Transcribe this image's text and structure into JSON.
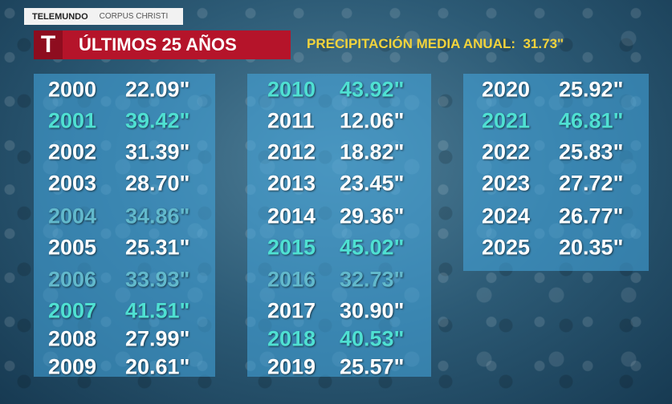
{
  "header": {
    "brand": "TELEMUNDO",
    "location": "CORPUS CHRISTI",
    "logo": "T",
    "title": "ÚLTIMOS 25 AÑOS",
    "subtitle": "PRECIPITACIÓN MEDIA ANUAL:  31.73\""
  },
  "table": {
    "columns": [
      {
        "rows": [
          {
            "year": "2000",
            "value": "22.09\"",
            "color": "#ffffff"
          },
          {
            "year": "2001",
            "value": "39.42\"",
            "color": "#4fe0d2"
          },
          {
            "year": "2002",
            "value": "31.39\"",
            "color": "#ffffff"
          },
          {
            "year": "2003",
            "value": "28.70\"",
            "color": "#ffffff"
          },
          {
            "year": "2004",
            "value": "34.86\"",
            "color": "#62b9cc"
          },
          {
            "year": "2005",
            "value": "25.31\"",
            "color": "#ffffff"
          },
          {
            "year": "2006",
            "value": "33.93\"",
            "color": "#62b9cc"
          },
          {
            "year": "2007",
            "value": "41.51\"",
            "color": "#4fe0d2"
          },
          {
            "year": "2008",
            "value": "27.99\"",
            "color": "#ffffff"
          },
          {
            "year": "2009",
            "value": "20.61\"",
            "color": "#ffffff"
          }
        ]
      },
      {
        "rows": [
          {
            "year": "2010",
            "value": "43.92\"",
            "color": "#4fe0d2"
          },
          {
            "year": "2011",
            "value": "12.06\"",
            "color": "#ffffff"
          },
          {
            "year": "2012",
            "value": "18.82\"",
            "color": "#ffffff"
          },
          {
            "year": "2013",
            "value": "23.45\"",
            "color": "#ffffff"
          },
          {
            "year": "2014",
            "value": "29.36\"",
            "color": "#ffffff"
          },
          {
            "year": "2015",
            "value": "45.02\"",
            "color": "#4fe0d2"
          },
          {
            "year": "2016",
            "value": "32.73\"",
            "color": "#62b9cc"
          },
          {
            "year": "2017",
            "value": "30.90\"",
            "color": "#ffffff"
          },
          {
            "year": "2018",
            "value": "40.53\"",
            "color": "#4fe0d2"
          },
          {
            "year": "2019",
            "value": "25.57\"",
            "color": "#ffffff"
          }
        ]
      },
      {
        "rows": [
          {
            "year": "2020",
            "value": "25.92\"",
            "color": "#ffffff"
          },
          {
            "year": "2021",
            "value": "46.81\"",
            "color": "#4fe0d2"
          },
          {
            "year": "2022",
            "value": "25.83\"",
            "color": "#ffffff"
          },
          {
            "year": "2023",
            "value": "27.72\"",
            "color": "#ffffff"
          },
          {
            "year": "2024",
            "value": "26.77\"",
            "color": "#ffffff"
          },
          {
            "year": "2025",
            "value": "20.35\"",
            "color": "#ffffff"
          }
        ]
      }
    ]
  }
}
